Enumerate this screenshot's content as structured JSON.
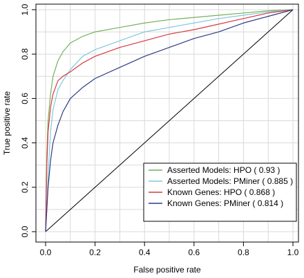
{
  "chart_data": {
    "type": "line",
    "title": "",
    "xlabel": "False positive rate",
    "ylabel": "True positive rate",
    "xlim": [
      0,
      1
    ],
    "ylim": [
      0,
      1
    ],
    "x_ticks": [
      "0.0",
      "0.2",
      "0.4",
      "0.6",
      "0.8",
      "1.0"
    ],
    "y_ticks": [
      "0.0",
      "0.2",
      "0.4",
      "0.6",
      "0.8",
      "1.0"
    ],
    "grid": true,
    "legend_position": "bottom-right",
    "diagonal_reference": true,
    "series": [
      {
        "name": "Asserted Models: HPO ( 0.93 )",
        "color": "#74b05a",
        "x": [
          0,
          0.005,
          0.01,
          0.02,
          0.03,
          0.05,
          0.07,
          0.1,
          0.15,
          0.2,
          0.3,
          0.4,
          0.5,
          0.6,
          0.7,
          0.8,
          0.9,
          1.0
        ],
        "y": [
          0,
          0.35,
          0.5,
          0.62,
          0.7,
          0.77,
          0.81,
          0.85,
          0.88,
          0.9,
          0.92,
          0.94,
          0.955,
          0.965,
          0.975,
          0.985,
          0.995,
          1.0
        ]
      },
      {
        "name": "Asserted Models: PMiner ( 0.885 )",
        "color": "#7ec8dc",
        "x": [
          0,
          0.005,
          0.01,
          0.02,
          0.03,
          0.05,
          0.07,
          0.1,
          0.15,
          0.2,
          0.3,
          0.4,
          0.5,
          0.6,
          0.7,
          0.8,
          0.9,
          1.0
        ],
        "y": [
          0,
          0.1,
          0.25,
          0.45,
          0.55,
          0.64,
          0.68,
          0.73,
          0.79,
          0.82,
          0.86,
          0.9,
          0.92,
          0.94,
          0.96,
          0.975,
          0.99,
          1.0
        ]
      },
      {
        "name": "Known Genes: HPO ( 0.868 )",
        "color": "#d9383f",
        "x": [
          0,
          0.005,
          0.01,
          0.02,
          0.03,
          0.05,
          0.07,
          0.1,
          0.15,
          0.2,
          0.3,
          0.4,
          0.5,
          0.6,
          0.7,
          0.8,
          0.9,
          1.0
        ],
        "y": [
          0,
          0.3,
          0.45,
          0.56,
          0.62,
          0.68,
          0.7,
          0.72,
          0.76,
          0.79,
          0.83,
          0.86,
          0.89,
          0.91,
          0.935,
          0.96,
          0.985,
          1.0
        ]
      },
      {
        "name": "Known Genes: PMiner ( 0.814 )",
        "color": "#2e3a85",
        "x": [
          0,
          0.005,
          0.01,
          0.02,
          0.03,
          0.05,
          0.07,
          0.1,
          0.15,
          0.2,
          0.3,
          0.4,
          0.5,
          0.6,
          0.7,
          0.8,
          0.9,
          1.0
        ],
        "y": [
          0,
          0.1,
          0.2,
          0.32,
          0.4,
          0.48,
          0.54,
          0.6,
          0.65,
          0.69,
          0.74,
          0.79,
          0.83,
          0.87,
          0.9,
          0.94,
          0.97,
          1.0
        ]
      }
    ]
  }
}
